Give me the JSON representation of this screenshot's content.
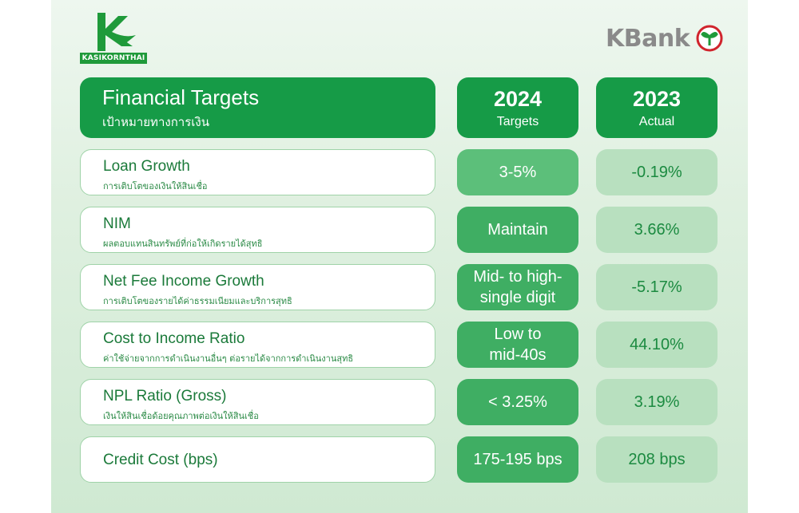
{
  "logos": {
    "left_text": "KASIKORNTHAI",
    "right_text": "KBank"
  },
  "header": {
    "title": "Financial Targets",
    "subtitle": "เป้าหมายทางการเงิน",
    "col1_year": "2024",
    "col1_label": "Targets",
    "col2_year": "2023",
    "col2_label": "Actual"
  },
  "rows": [
    {
      "label": "Loan Growth",
      "sub": "การเติบโตของเงินให้สินเชื่อ",
      "target": "3-5%",
      "actual": "-0.19%"
    },
    {
      "label": "NIM",
      "sub": "ผลตอบแทนสินทรัพย์ที่ก่อให้เกิดรายได้สุทธิ",
      "target": "Maintain",
      "actual": "3.66%"
    },
    {
      "label": "Net Fee Income Growth",
      "sub": "การเติบโตของรายได้ค่าธรรมเนียมและบริการสุทธิ",
      "target_line1": "Mid- to high-",
      "target_line2": "single digit",
      "actual": "-5.17%"
    },
    {
      "label": "Cost to Income Ratio",
      "sub": "ค่าใช้จ่ายจากการดำเนินงานอื่นๆ ต่อรายได้จากการดำเนินงานสุทธิ",
      "target_line1": "Low to",
      "target_line2": "mid-40s",
      "actual": "44.10%"
    },
    {
      "label": "NPL Ratio (Gross)",
      "sub": "เงินให้สินเชื่อด้อยคุณภาพต่อเงินให้สินเชื่อ",
      "target": "< 3.25%",
      "actual": "3.19%"
    },
    {
      "label": "Credit Cost (bps)",
      "sub": "",
      "target": "175-195 bps",
      "actual": "208 bps"
    }
  ],
  "colors": {
    "header_green": "#169b47",
    "target_green": "#3fae63",
    "actual_green": "#b8e0bf",
    "label_text": "#1b7a3a"
  }
}
